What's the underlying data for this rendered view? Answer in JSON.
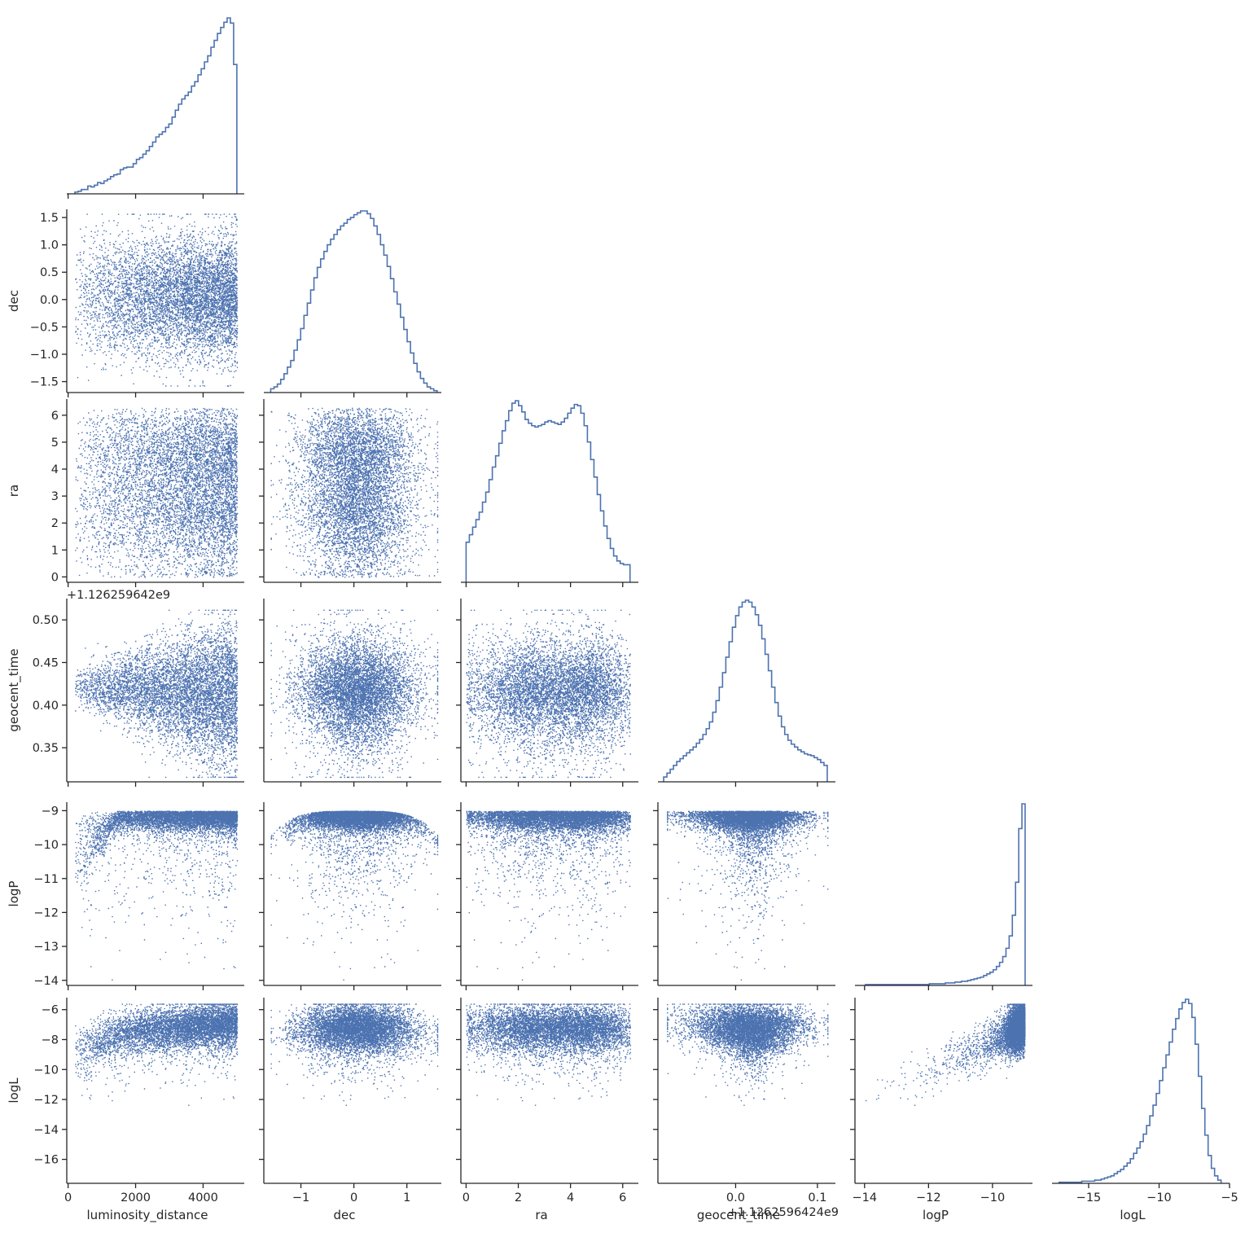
{
  "chart_data": {
    "type": "corner-pairplot",
    "variables": [
      "luminosity_distance",
      "dec",
      "ra",
      "geocent_time",
      "logP",
      "logL"
    ],
    "colors": {
      "series": "#4c72b0",
      "axis": "#262626"
    },
    "diag_hist_bins": 50,
    "offset_texts": {
      "ra_geocent_y": "+1.126259642e9",
      "geocent_time_x": "+1.1262596424e9"
    },
    "axes": {
      "luminosity_distance": {
        "label": "luminosity_distance",
        "lim": [
          -40,
          5220
        ],
        "ticks": [
          0,
          2000,
          4000
        ],
        "tick_labels": [
          "0",
          "2000",
          "4000"
        ],
        "range": [
          200,
          5000
        ],
        "mode": 4500,
        "spread": 1500
      },
      "dec": {
        "label": "dec",
        "lim": [
          -1.7,
          1.65
        ],
        "ticks": [
          -1.5,
          -1.0,
          -0.5,
          0.0,
          0.5,
          1.0,
          1.5
        ],
        "tick_labels": [
          "-1.5",
          "-1.0",
          "-0.5",
          "0.0",
          "0.5",
          "1.0",
          "1.5"
        ],
        "x_ticks": [
          -1,
          0,
          1
        ],
        "x_tick_labels": [
          "-1",
          "0",
          "1"
        ],
        "range": [
          -1.57,
          1.57
        ],
        "mode": 0.1,
        "spread": 0.55
      },
      "ra": {
        "label": "ra",
        "lim": [
          -0.2,
          6.6
        ],
        "ticks": [
          0,
          1,
          2,
          3,
          4,
          5,
          6
        ],
        "tick_labels": [
          "0",
          "1",
          "2",
          "3",
          "4",
          "5",
          "6"
        ],
        "x_ticks": [
          0,
          2,
          4,
          6
        ],
        "x_tick_labels": [
          "0",
          "2",
          "4",
          "6"
        ],
        "range": [
          0,
          6.28
        ]
      },
      "geocent_time": {
        "label": "geocent_time",
        "lim": [
          0.31,
          0.525
        ],
        "ticks": [
          0.35,
          0.4,
          0.45,
          0.5
        ],
        "tick_labels": [
          "0.35",
          "0.40",
          "0.45",
          "0.50"
        ],
        "x_lim": [
          -0.095,
          0.122
        ],
        "x_ticks": [
          0.0,
          0.1
        ],
        "x_tick_labels": [
          "0.0",
          "0.1"
        ],
        "range": [
          0.316,
          0.512
        ],
        "x_range": [
          -0.088,
          0.112
        ],
        "mode": 0.42,
        "spread": 0.025
      },
      "logP": {
        "label": "logP",
        "lim": [
          -14.15,
          -8.75
        ],
        "ticks": [
          -14,
          -13,
          -12,
          -11,
          -10,
          -9
        ],
        "tick_labels": [
          "-14",
          "-13",
          "-12",
          "-11",
          "-10",
          "-9"
        ],
        "x_ticks": [
          -14,
          -12,
          -10
        ],
        "x_tick_labels": [
          "-14",
          "-12",
          "-10"
        ],
        "range": [
          -13.97,
          -8.98
        ],
        "x_lim": [
          -14.3,
          -8.75
        ]
      },
      "logL": {
        "label": "logL",
        "lim": [
          -17.6,
          -5.2
        ],
        "ticks": [
          -16,
          -14,
          -12,
          -10,
          -8,
          -6
        ],
        "tick_labels": [
          "-16",
          "-14",
          "-12",
          "-10",
          "-8",
          "-6"
        ],
        "x_lim": [
          -17.6,
          -5.0
        ],
        "x_ticks": [
          -15,
          -10,
          -5
        ],
        "x_tick_labels": [
          "-15",
          "-10",
          "-5"
        ],
        "range": [
          -17.1,
          -5.6
        ],
        "mode": -8.1,
        "spread": 1.3
      }
    },
    "histograms": {
      "luminosity_distance": [
        2,
        3,
        5,
        5,
        9,
        8,
        10,
        13,
        12,
        15,
        17,
        20,
        22,
        23,
        28,
        30,
        31,
        31,
        35,
        40,
        42,
        46,
        50,
        55,
        60,
        66,
        69,
        72,
        77,
        81,
        89,
        97,
        104,
        110,
        114,
        118,
        125,
        130,
        138,
        145,
        153,
        160,
        170,
        178,
        186,
        193,
        199,
        204,
        198,
        150
      ],
      "dec": [
        4,
        6,
        9,
        14,
        20,
        27,
        34,
        45,
        56,
        68,
        82,
        95,
        109,
        122,
        133,
        142,
        150,
        157,
        163,
        168,
        173,
        177,
        180,
        184,
        186,
        189,
        191,
        193,
        193,
        190,
        185,
        177,
        168,
        157,
        146,
        134,
        121,
        107,
        94,
        80,
        67,
        54,
        42,
        31,
        22,
        15,
        10,
        6,
        4,
        2
      ],
      "ra": [
        32,
        38,
        44,
        50,
        56,
        64,
        72,
        82,
        92,
        101,
        111,
        121,
        129,
        137,
        143,
        145,
        141,
        136,
        130,
        127,
        125,
        124,
        125,
        126,
        128,
        129,
        128,
        127,
        126,
        128,
        131,
        135,
        139,
        142,
        141,
        135,
        125,
        112,
        98,
        84,
        70,
        57,
        45,
        35,
        27,
        21,
        17,
        15,
        14,
        14
      ],
      "geocent_time": [
        5,
        9,
        13,
        17,
        21,
        24,
        27,
        30,
        33,
        36,
        40,
        44,
        49,
        55,
        62,
        72,
        84,
        98,
        113,
        129,
        145,
        160,
        172,
        181,
        186,
        188,
        186,
        181,
        173,
        162,
        148,
        132,
        115,
        98,
        82,
        68,
        57,
        49,
        43,
        39,
        36,
        33,
        31,
        29,
        28,
        27,
        25,
        23,
        20,
        17
      ],
      "logP": [
        1,
        1,
        1,
        1,
        1,
        1,
        1,
        1,
        1,
        1,
        1,
        1,
        1,
        1,
        1,
        1,
        1,
        1,
        1,
        1,
        2,
        2,
        2,
        2,
        2,
        3,
        3,
        3,
        4,
        4,
        5,
        5,
        6,
        7,
        8,
        9,
        10,
        12,
        14,
        16,
        19,
        23,
        28,
        35,
        45,
        60,
        85,
        125,
        190,
        220
      ],
      "logL": [
        1,
        1,
        1,
        1,
        1,
        1,
        1,
        2,
        2,
        2,
        2,
        3,
        3,
        4,
        5,
        6,
        7,
        9,
        11,
        13,
        16,
        19,
        23,
        28,
        33,
        39,
        46,
        54,
        63,
        73,
        84,
        96,
        108,
        120,
        132,
        144,
        154,
        163,
        169,
        172,
        168,
        155,
        130,
        100,
        70,
        45,
        26,
        14,
        7,
        3
      ]
    }
  }
}
